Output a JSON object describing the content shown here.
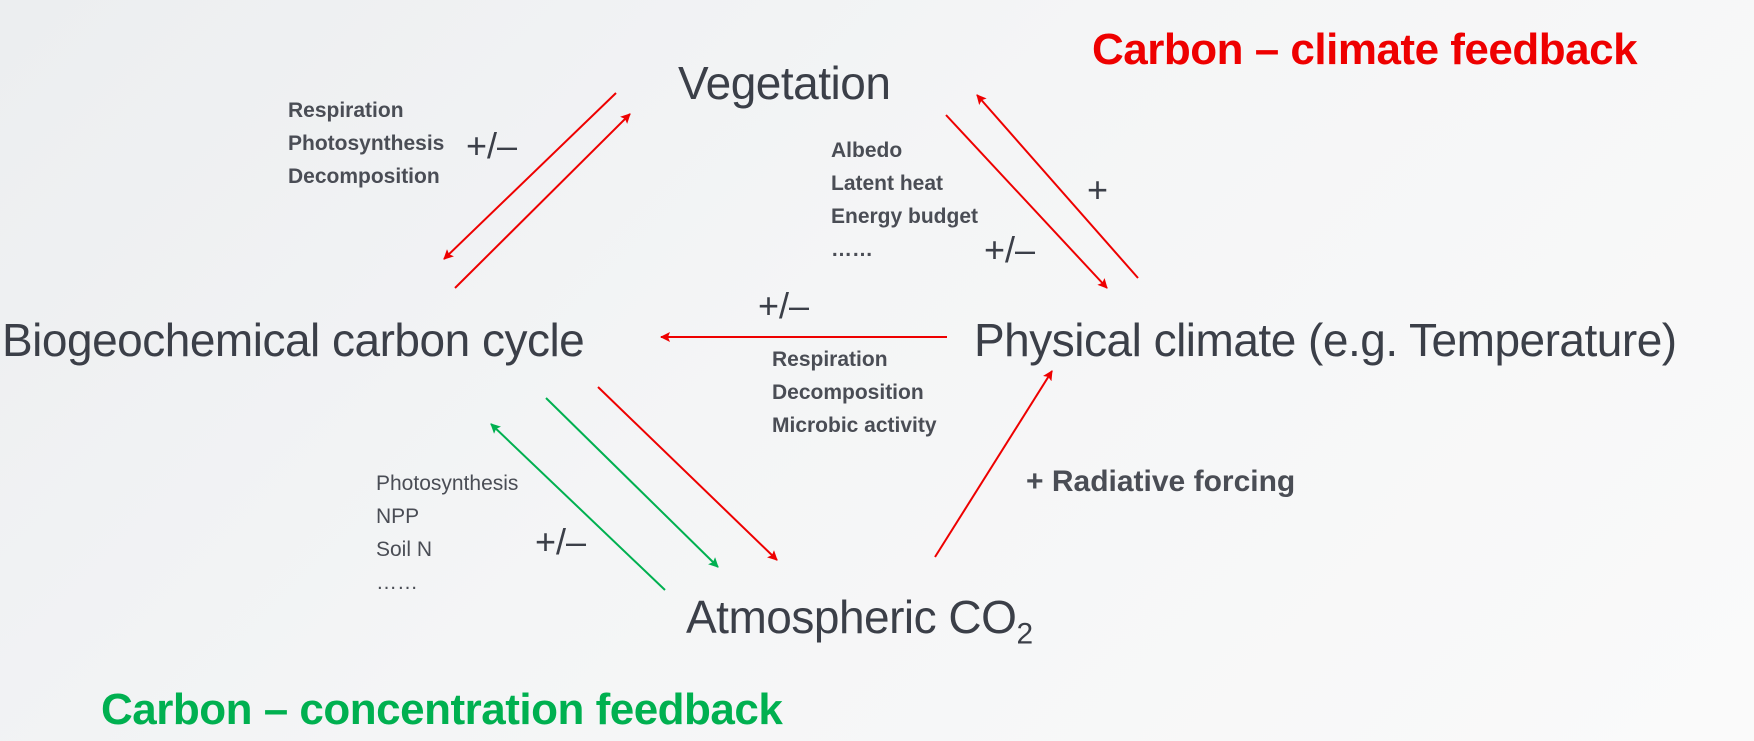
{
  "titles": {
    "climate_feedback": "Carbon – climate feedback",
    "concentration_feedback": "Carbon – concentration feedback"
  },
  "nodes": {
    "vegetation": "Vegetation",
    "carbon_cycle": "Biogeochemical carbon cycle",
    "physical_climate": "Physical climate (e.g. Temperature)",
    "atmospheric_co2_main": "Atmospheric CO",
    "atmospheric_co2_sub": "2"
  },
  "labels": {
    "veg_cycle": [
      "Respiration",
      "Photosynthesis",
      "Decomposition"
    ],
    "veg_climate": [
      "Albedo",
      "Latent heat",
      "Energy budget",
      "……"
    ],
    "climate_cycle": [
      "Respiration",
      "Decomposition",
      "Microbic activity"
    ],
    "cycle_co2": [
      "Photosynthesis",
      "NPP",
      "Soil N",
      "……"
    ],
    "radiative_forcing": "+ Radiative forcing"
  },
  "signs": {
    "veg_cycle": "+/–",
    "veg_climate_pm": "+/–",
    "veg_climate_plus": "+",
    "climate_cycle": "+/–",
    "cycle_co2": "+/–"
  },
  "colors": {
    "climate_feedback": "#ee0000",
    "concentration_feedback": "#00b050",
    "text": "#3b3f48"
  }
}
